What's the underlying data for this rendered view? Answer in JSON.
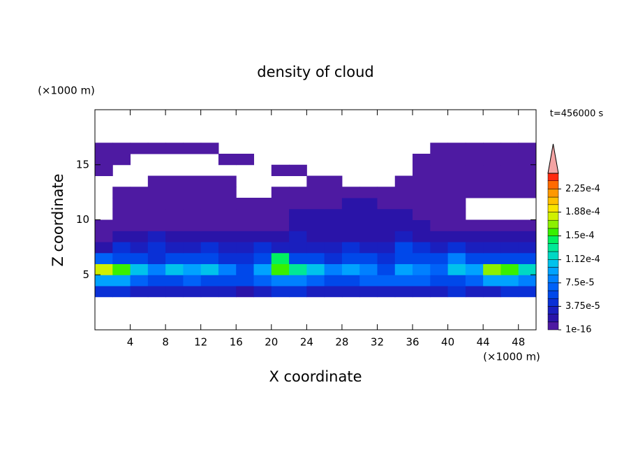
{
  "chart_data": {
    "type": "heatmap",
    "title": "density of cloud",
    "xlabel": "X coordinate",
    "ylabel": "Z coordinate",
    "xunit": "(×1000 m)",
    "yunit": "(×1000 m)",
    "annotation": "t=456000 s",
    "xlim": [
      0,
      50
    ],
    "ylim": [
      0,
      20
    ],
    "xticks": [
      4,
      8,
      12,
      16,
      20,
      24,
      28,
      32,
      36,
      40,
      44,
      48
    ],
    "yticks": [
      5,
      10,
      15
    ],
    "x": [
      1,
      3,
      5,
      7,
      9,
      11,
      13,
      15,
      17,
      19,
      21,
      23,
      25,
      27,
      29,
      31,
      33,
      35,
      37,
      39,
      41,
      43,
      45,
      47,
      49
    ],
    "z": [
      3.5,
      4.5,
      5.5,
      6.5,
      7.5,
      8.5,
      9.5,
      10.5,
      11.5,
      12.5,
      13.5,
      14.5,
      15.5,
      16.5
    ],
    "values": [
      [
        4e-05,
        4e-05,
        3e-05,
        3e-05,
        3e-05,
        3e-05,
        3e-05,
        3e-05,
        2e-05,
        3e-05,
        4e-05,
        4e-05,
        3e-05,
        3e-05,
        3e-05,
        3e-05,
        3e-05,
        3e-05,
        3e-05,
        3e-05,
        4e-05,
        3e-05,
        3e-05,
        4e-05,
        4e-05
      ],
      [
        9e-05,
        9e-05,
        7e-05,
        6e-05,
        6e-05,
        7e-05,
        6e-05,
        5e-05,
        6e-05,
        7e-05,
        8e-05,
        8e-05,
        7e-05,
        6e-05,
        6e-05,
        7e-05,
        7e-05,
        7e-05,
        7e-05,
        6e-05,
        6e-05,
        7e-05,
        9e-05,
        9e-05,
        8e-05
      ],
      [
        0.00018,
        0.00016,
        0.00011,
        8e-05,
        0.0001,
        9e-05,
        0.0001,
        8e-05,
        6e-05,
        9e-05,
        0.00016,
        0.00013,
        0.0001,
        8e-05,
        9e-05,
        8e-05,
        6e-05,
        9e-05,
        8e-05,
        7e-05,
        0.00011,
        9e-05,
        0.00017,
        0.00016,
        0.00012
      ],
      [
        7e-05,
        6e-05,
        5e-05,
        4e-05,
        6e-05,
        5e-05,
        5e-05,
        4e-05,
        4e-05,
        6e-05,
        0.00014,
        6e-05,
        5e-05,
        4e-05,
        5e-05,
        5e-05,
        4e-05,
        5e-05,
        6e-05,
        5e-05,
        8e-05,
        6e-05,
        5e-05,
        5e-05,
        6e-05
      ],
      [
        2e-05,
        4e-05,
        3e-05,
        4e-05,
        3e-05,
        3e-05,
        4e-05,
        3e-05,
        3e-05,
        4e-05,
        3e-05,
        3e-05,
        3e-05,
        3e-05,
        4e-05,
        3e-05,
        3e-05,
        5e-05,
        4e-05,
        3e-05,
        4e-05,
        3e-05,
        3e-05,
        3e-05,
        3e-05
      ],
      [
        1e-05,
        2e-05,
        2e-05,
        3e-05,
        2e-05,
        2e-05,
        2e-05,
        2e-05,
        2e-05,
        2e-05,
        2e-05,
        3e-05,
        2e-05,
        2e-05,
        2e-05,
        2e-05,
        2e-05,
        3e-05,
        2e-05,
        2e-05,
        2e-05,
        2e-05,
        2e-05,
        2e-05,
        2e-05
      ],
      [
        5e-06,
        5e-06,
        1e-05,
        1e-05,
        1e-05,
        1e-05,
        1e-05,
        1e-05,
        1e-05,
        1e-05,
        1e-05,
        1.5e-05,
        1.5e-05,
        1.5e-05,
        1.5e-05,
        1.5e-05,
        1.5e-05,
        1.5e-05,
        1.5e-05,
        1e-05,
        1e-05,
        1e-05,
        1e-05,
        1e-05,
        5e-06
      ],
      [
        null,
        5e-06,
        5e-06,
        5e-06,
        5e-06,
        5e-06,
        5e-06,
        5e-06,
        5e-06,
        5e-06,
        5e-06,
        1.5e-05,
        1.5e-05,
        1.5e-05,
        1.5e-05,
        1.5e-05,
        1.5e-05,
        1.5e-05,
        5e-06,
        5e-06,
        5e-06,
        null,
        null,
        null,
        null
      ],
      [
        null,
        5e-06,
        5e-06,
        5e-06,
        5e-06,
        5e-06,
        5e-06,
        5e-06,
        5e-06,
        5e-06,
        5e-06,
        5e-06,
        5e-06,
        5e-06,
        1.5e-05,
        1.5e-05,
        5e-06,
        5e-06,
        5e-06,
        5e-06,
        5e-06,
        null,
        null,
        null,
        null
      ],
      [
        null,
        5e-06,
        5e-06,
        5e-06,
        5e-06,
        5e-06,
        5e-06,
        5e-06,
        null,
        null,
        5e-06,
        5e-06,
        5e-06,
        5e-06,
        5e-06,
        5e-06,
        5e-06,
        5e-06,
        5e-06,
        5e-06,
        5e-06,
        5e-06,
        5e-06,
        5e-06,
        5e-06
      ],
      [
        null,
        null,
        null,
        5e-06,
        5e-06,
        5e-06,
        5e-06,
        5e-06,
        null,
        null,
        null,
        null,
        5e-06,
        5e-06,
        null,
        null,
        null,
        5e-06,
        5e-06,
        5e-06,
        5e-06,
        5e-06,
        5e-06,
        5e-06,
        5e-06
      ],
      [
        5e-06,
        null,
        null,
        null,
        null,
        null,
        null,
        null,
        null,
        null,
        5e-06,
        5e-06,
        null,
        null,
        null,
        null,
        null,
        null,
        5e-06,
        5e-06,
        5e-06,
        5e-06,
        5e-06,
        5e-06,
        5e-06
      ],
      [
        5e-06,
        5e-06,
        null,
        null,
        null,
        null,
        null,
        5e-06,
        5e-06,
        null,
        null,
        null,
        null,
        null,
        null,
        null,
        null,
        null,
        5e-06,
        5e-06,
        5e-06,
        5e-06,
        5e-06,
        5e-06,
        5e-06
      ],
      [
        5e-06,
        5e-06,
        5e-06,
        5e-06,
        5e-06,
        5e-06,
        5e-06,
        null,
        null,
        null,
        null,
        null,
        null,
        null,
        null,
        null,
        null,
        null,
        null,
        5e-06,
        5e-06,
        5e-06,
        5e-06,
        5e-06,
        5e-06
      ]
    ],
    "colorbar": {
      "levels": [
        1e-16,
        1.25e-05,
        2.5e-05,
        3.75e-05,
        5e-05,
        6.25e-05,
        7.5e-05,
        8.75e-05,
        0.0001,
        0.000112,
        0.000125,
        0.000138,
        0.00015,
        0.000162,
        0.000175,
        0.000188,
        0.0002,
        0.000212,
        0.000225,
        0.000238,
        0.00025
      ],
      "colors": [
        "#4e1aa2",
        "#2a14a8",
        "#1a1fbe",
        "#0a30d6",
        "#0048ea",
        "#0062f8",
        "#0080ff",
        "#00a2ff",
        "#00c2ec",
        "#00d8c4",
        "#00e896",
        "#00f060",
        "#38f000",
        "#8cf000",
        "#d0f000",
        "#f8e400",
        "#ffc000",
        "#ff9800",
        "#ff6a00",
        "#ff2a10"
      ],
      "extend_color": "#f4a4a4",
      "ticks": [
        {
          "value": 1e-16,
          "label": "1e-16"
        },
        {
          "value": 3.75e-05,
          "label": "3.75e-5"
        },
        {
          "value": 7.5e-05,
          "label": "7.5e-5"
        },
        {
          "value": 0.000112,
          "label": "1.12e-4"
        },
        {
          "value": 0.00015,
          "label": "1.5e-4"
        },
        {
          "value": 0.000188,
          "label": "1.88e-4"
        },
        {
          "value": 0.000225,
          "label": "2.25e-4"
        }
      ]
    }
  }
}
